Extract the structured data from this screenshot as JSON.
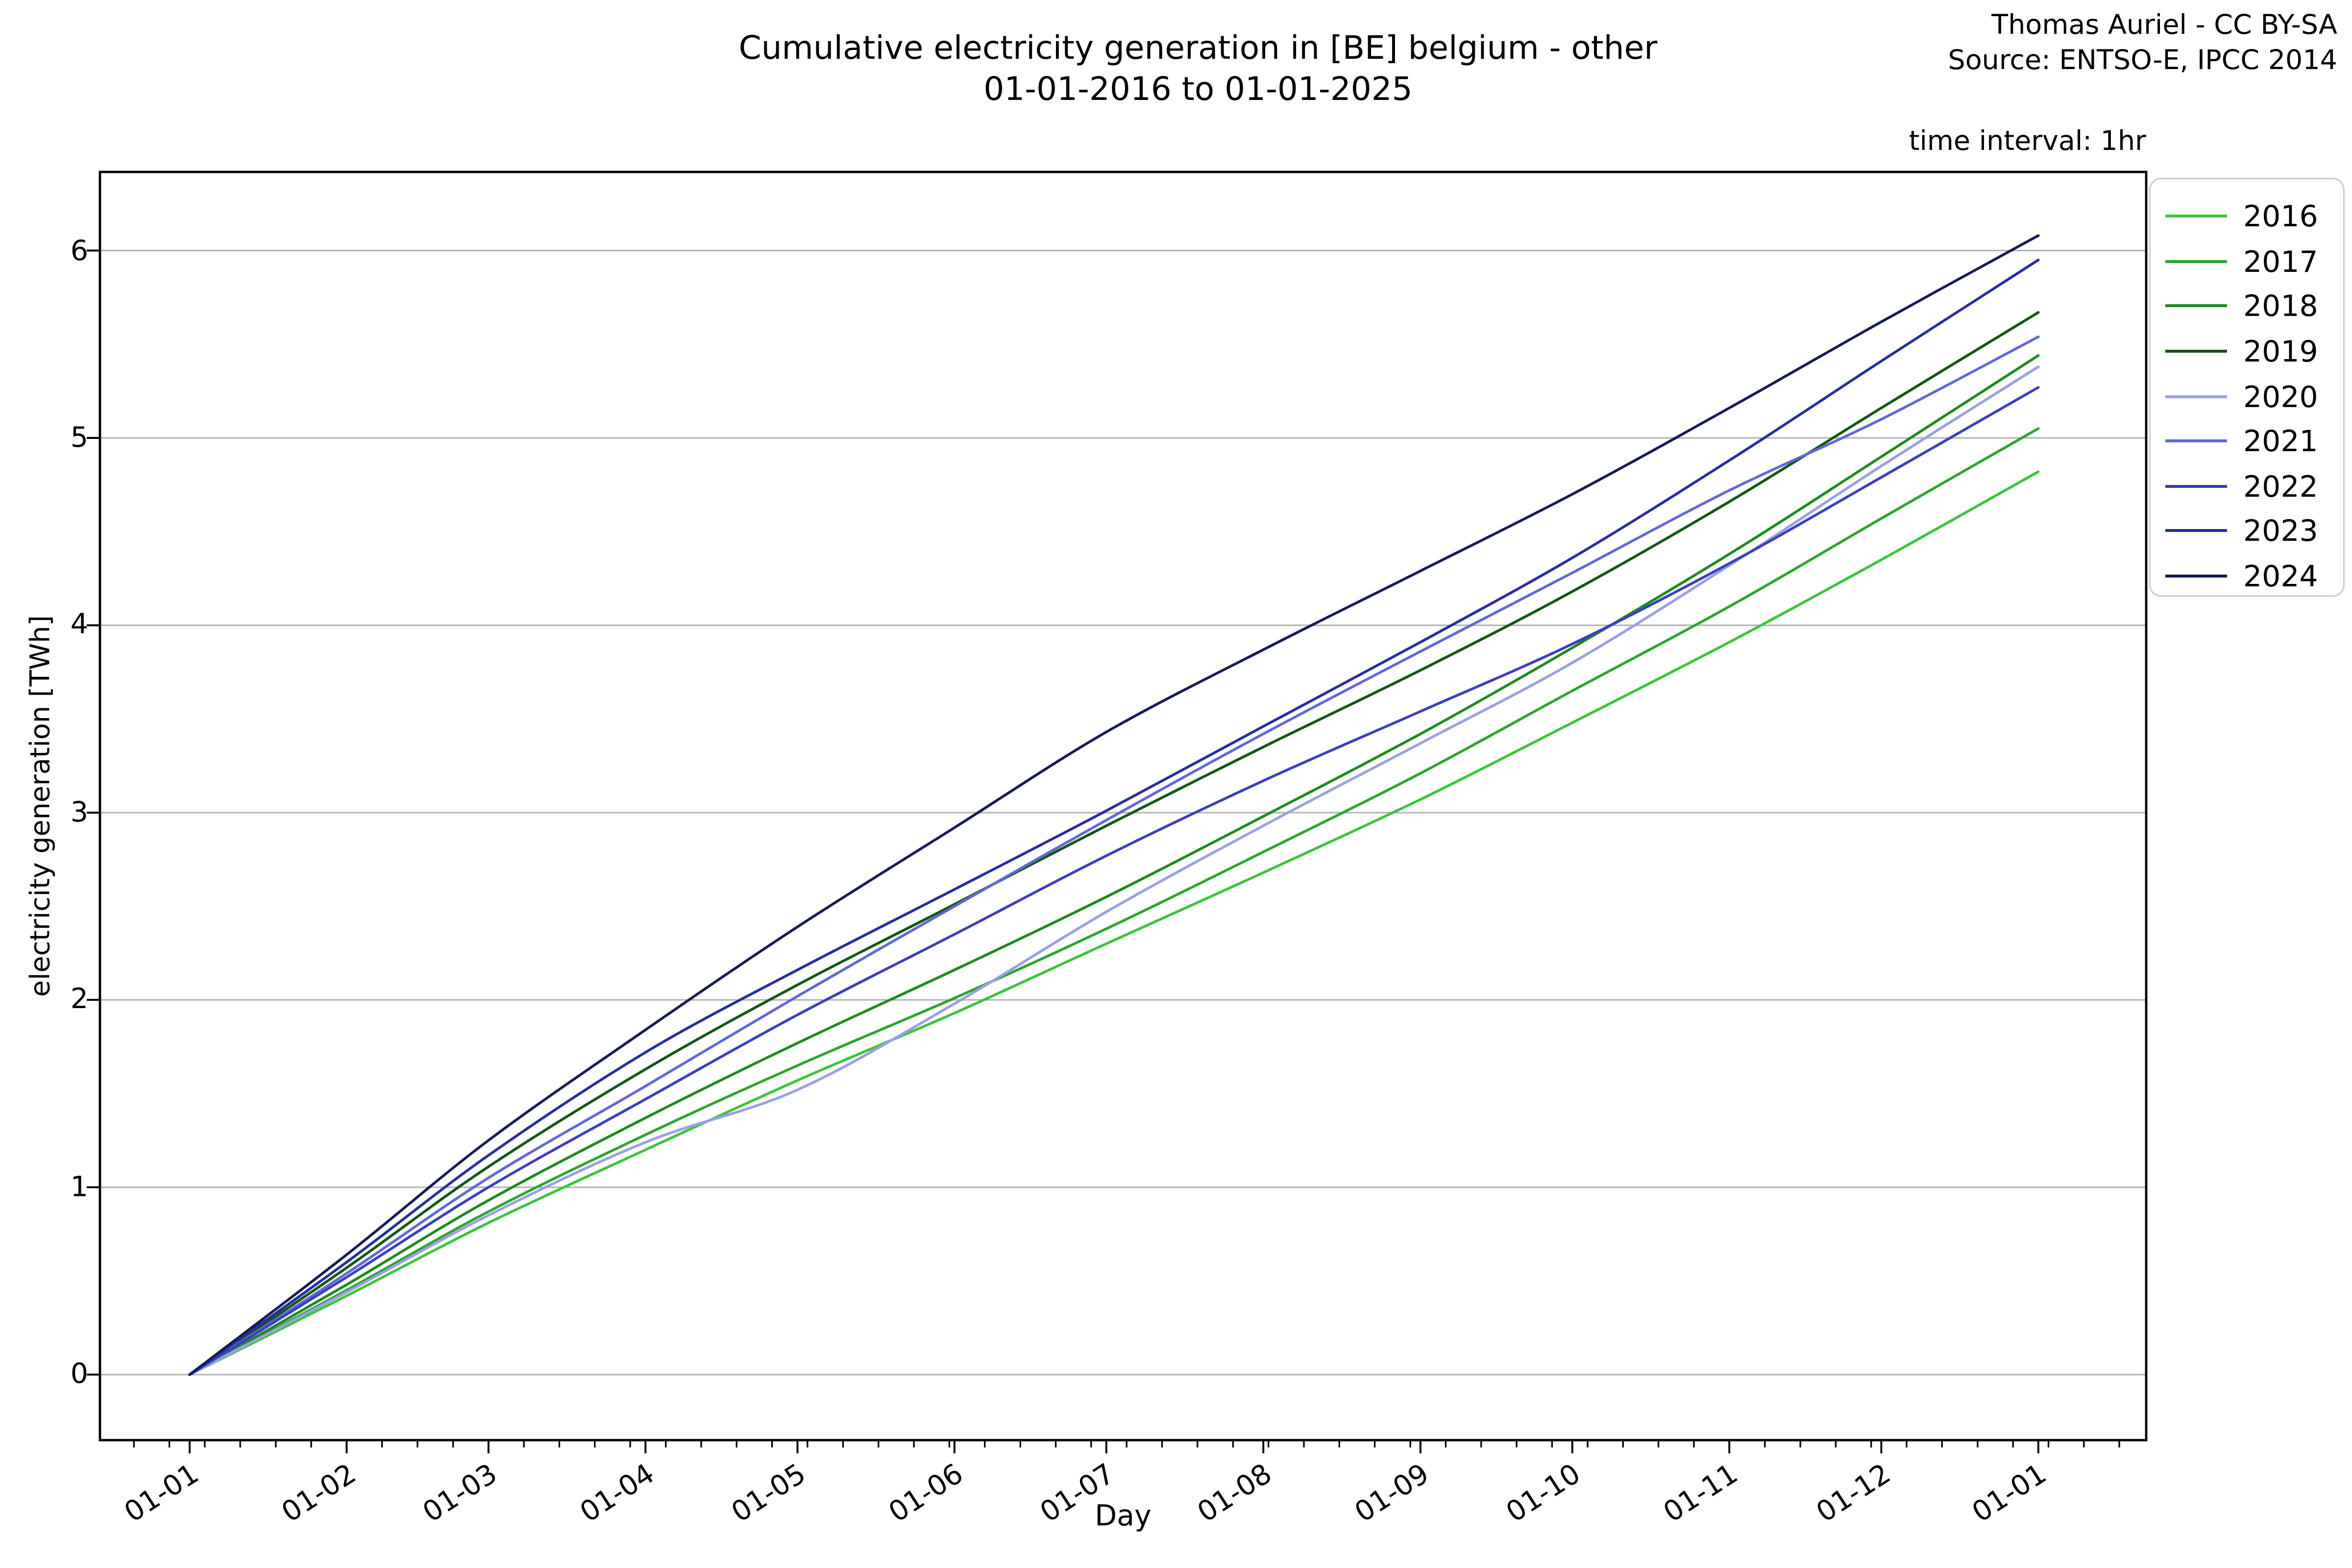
{
  "title": {
    "line1": "Cumulative electricity generation in [BE] belgium - other",
    "line2": "01-01-2016 to 01-01-2025"
  },
  "attribution": {
    "line1": "Thomas Auriel - CC BY-SA",
    "line2": "Source: ENTSO-E, IPCC 2014"
  },
  "annotation": "time interval: 1hr",
  "axes": {
    "xlabel": "Day",
    "ylabel": "electricity generation [TWh]",
    "x_tick_labels": [
      "01-01",
      "01-02",
      "01-03",
      "01-04",
      "01-05",
      "01-06",
      "01-07",
      "01-08",
      "01-09",
      "01-10",
      "01-11",
      "01-12",
      "01-01"
    ],
    "y_ticks": [
      0,
      1,
      2,
      3,
      4,
      5,
      6
    ]
  },
  "legend": {
    "position": "outside upper right"
  },
  "chart_data": {
    "type": "line",
    "title": "Cumulative electricity generation in [BE] belgium - other 01-01-2016 to 01-01-2025",
    "xlabel": "Day",
    "ylabel": "electricity generation [TWh]",
    "x_tick_labels": [
      "01-01",
      "01-02",
      "01-03",
      "01-04",
      "01-05",
      "01-06",
      "01-07",
      "01-08",
      "01-09",
      "01-10",
      "01-11",
      "01-12",
      "01-01"
    ],
    "x_day_of_year": [
      0,
      31,
      59,
      90,
      120,
      151,
      181,
      212,
      243,
      273,
      304,
      334,
      365
    ],
    "ylim": [
      -0.35,
      6.42
    ],
    "xlim_days": [
      -17.7,
      386.3
    ],
    "grid": "horizontal",
    "gridline_color": "#b2b2b2",
    "units": "TWh",
    "series": [
      {
        "name": "2016",
        "color": "#3cc43c",
        "cumulative_TWh": [
          0,
          0.42,
          0.81,
          1.2,
          1.57,
          1.93,
          2.3,
          2.68,
          3.07,
          3.48,
          3.91,
          4.35,
          4.82
        ]
      },
      {
        "name": "2017",
        "color": "#2fa42f",
        "cumulative_TWh": [
          0,
          0.45,
          0.87,
          1.28,
          1.65,
          2.01,
          2.38,
          2.79,
          3.21,
          3.65,
          4.1,
          4.57,
          5.05
        ]
      },
      {
        "name": "2018",
        "color": "#1f8a1f",
        "cumulative_TWh": [
          0,
          0.48,
          0.93,
          1.37,
          1.77,
          2.16,
          2.55,
          2.98,
          3.42,
          3.88,
          4.38,
          4.9,
          5.44
        ]
      },
      {
        "name": "2019",
        "color": "#135613",
        "cumulative_TWh": [
          0,
          0.57,
          1.11,
          1.63,
          2.08,
          2.51,
          2.93,
          3.35,
          3.76,
          4.18,
          4.66,
          5.16,
          5.67
        ]
      },
      {
        "name": "2020",
        "color": "#9aa0e6",
        "cumulative_TWh": [
          0,
          0.44,
          0.85,
          1.24,
          1.52,
          1.98,
          2.47,
          2.93,
          3.37,
          3.8,
          4.32,
          4.85,
          5.38
        ]
      },
      {
        "name": "2021",
        "color": "#6168d8",
        "cumulative_TWh": [
          0,
          0.54,
          1.05,
          1.54,
          2.02,
          2.5,
          2.96,
          3.42,
          3.86,
          4.28,
          4.72,
          5.1,
          5.54
        ]
      },
      {
        "name": "2022",
        "color": "#3a40bb",
        "cumulative_TWh": [
          0,
          0.52,
          1.0,
          1.47,
          1.92,
          2.35,
          2.77,
          3.17,
          3.54,
          3.9,
          4.33,
          4.79,
          5.27
        ]
      },
      {
        "name": "2023",
        "color": "#272e9b",
        "cumulative_TWh": [
          0,
          0.6,
          1.17,
          1.72,
          2.16,
          2.59,
          3.01,
          3.46,
          3.91,
          4.36,
          4.88,
          5.41,
          5.95
        ]
      },
      {
        "name": "2024",
        "color": "#161b55",
        "cumulative_TWh": [
          0,
          0.64,
          1.25,
          1.84,
          2.39,
          2.92,
          3.43,
          3.87,
          4.29,
          4.7,
          5.16,
          5.62,
          6.08
        ]
      }
    ]
  }
}
